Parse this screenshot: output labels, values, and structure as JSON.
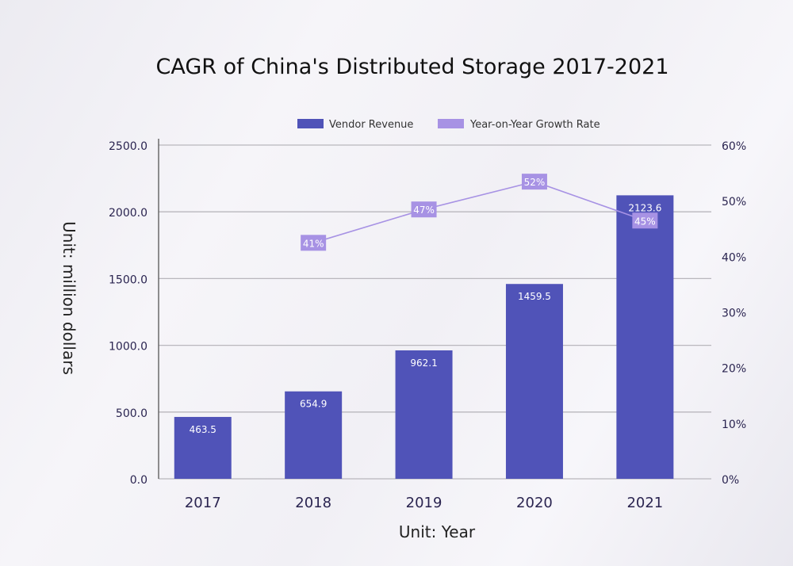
{
  "chart_data": {
    "type": "bar",
    "title": "CAGR of China's Distributed Storage 2017-2021",
    "xlabel": "Unit: Year",
    "ylabel": "Unit: million dollars",
    "categories": [
      "2017",
      "2018",
      "2019",
      "2020",
      "2021"
    ],
    "ylim": [
      0,
      2500
    ],
    "y2lim": [
      0,
      60
    ],
    "yticks": [
      "0.0",
      "500.0",
      "1000.0",
      "1500.0",
      "2000.0",
      "2500.0"
    ],
    "y2ticks": [
      "0%",
      "10%",
      "20%",
      "30%",
      "40%",
      "50%",
      "60%"
    ],
    "grid": true,
    "legend_placement": "top-center",
    "series": [
      {
        "name": "Vendor Revenue",
        "type": "bar",
        "axis": "left",
        "color": "#5053b8",
        "values": [
          463.5,
          654.9,
          962.1,
          1459.5,
          2123.6
        ],
        "labels": [
          "463.5",
          "654.9",
          "962.1",
          "1459.5",
          "2123.6"
        ]
      },
      {
        "name": "Year-on-Year Growth Rate",
        "type": "line",
        "axis": "right",
        "color": "#a792e4",
        "values": [
          null,
          41,
          47,
          52,
          45
        ],
        "labels": [
          null,
          "41%",
          "47%",
          "52%",
          "45%"
        ]
      }
    ]
  }
}
